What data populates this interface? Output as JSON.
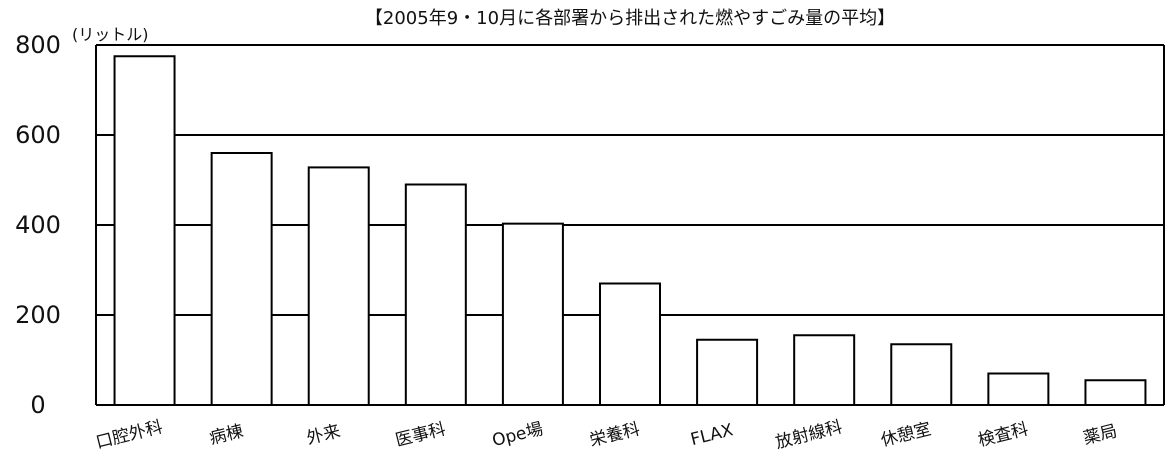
{
  "chart_data": {
    "type": "bar",
    "title": "【2005年9・10月に各部署から排出された燃やすごみ量の平均】",
    "ylabel": "(リットル)",
    "xlabel": "",
    "ylim": [
      0,
      800
    ],
    "yticks": [
      0,
      200,
      400,
      600,
      800
    ],
    "grid": true,
    "categories": [
      "口腔外科",
      "病棟",
      "外来",
      "医事科",
      "Ope場",
      "栄養科",
      "FLAX",
      "放射線科",
      "休憩室",
      "検査科",
      "薬局"
    ],
    "values": [
      775,
      560,
      528,
      490,
      403,
      270,
      145,
      155,
      135,
      70,
      55
    ]
  }
}
